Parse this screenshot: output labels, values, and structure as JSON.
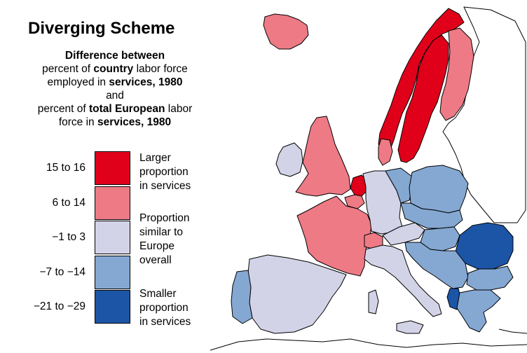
{
  "title": "Diverging Scheme",
  "description": {
    "line1": "Difference between",
    "line2_pre": "percent of ",
    "line2_bold": "country",
    "line2_post": " labor force",
    "line3_pre": "employed in ",
    "line3_bold": "services, 1980",
    "line4": "and",
    "line5_pre": "percent of ",
    "line5_bold": "total European",
    "line5_post": " labor",
    "line6_pre": "force in ",
    "line6_bold": "services, 1980"
  },
  "legend": {
    "classes": [
      {
        "range": "15 to 16",
        "color": "#e0001a"
      },
      {
        "range": "6 to 14",
        "color": "#ee7a86"
      },
      {
        "range": "−1 to 3",
        "color": "#d3d3e8"
      },
      {
        "range": "−7 to −14",
        "color": "#84a8d2"
      },
      {
        "range": "−21 to −29",
        "color": "#1c55a6"
      }
    ],
    "labels": {
      "larger": [
        "Larger",
        "proportion",
        "in services"
      ],
      "similar": [
        "Proportion",
        "similar to",
        "Europe",
        "overall"
      ],
      "smaller": [
        "Smaller",
        "proportion",
        "in services"
      ]
    }
  },
  "regions": [
    {
      "name": "iceland",
      "class": 1
    },
    {
      "name": "norway",
      "class": 0
    },
    {
      "name": "sweden",
      "class": 0
    },
    {
      "name": "finland",
      "class": 1
    },
    {
      "name": "denmark",
      "class": 1
    },
    {
      "name": "united-kingdom",
      "class": 1
    },
    {
      "name": "ireland",
      "class": 2
    },
    {
      "name": "netherlands",
      "class": 0
    },
    {
      "name": "belgium",
      "class": 1
    },
    {
      "name": "france",
      "class": 1
    },
    {
      "name": "germany",
      "class": 2
    },
    {
      "name": "switzerland",
      "class": 1
    },
    {
      "name": "austria",
      "class": 2
    },
    {
      "name": "italy",
      "class": 2
    },
    {
      "name": "spain",
      "class": 2
    },
    {
      "name": "portugal",
      "class": 3
    },
    {
      "name": "poland",
      "class": 3
    },
    {
      "name": "czechoslovakia",
      "class": 3
    },
    {
      "name": "hungary",
      "class": 3
    },
    {
      "name": "yugoslavia",
      "class": 3
    },
    {
      "name": "romania",
      "class": 4
    },
    {
      "name": "bulgaria",
      "class": 3
    },
    {
      "name": "albania",
      "class": 4
    },
    {
      "name": "greece",
      "class": 3
    },
    {
      "name": "east-germany",
      "class": 3
    },
    {
      "name": "ussr",
      "class": null
    }
  ]
}
